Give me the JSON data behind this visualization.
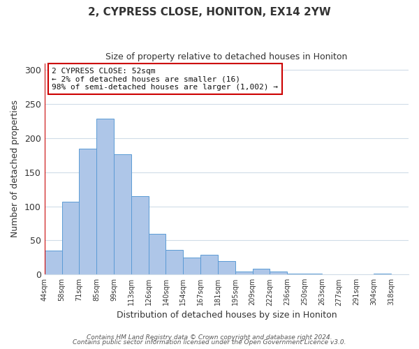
{
  "title": "2, CYPRESS CLOSE, HONITON, EX14 2YW",
  "subtitle": "Size of property relative to detached houses in Honiton",
  "xlabel": "Distribution of detached houses by size in Honiton",
  "ylabel": "Number of detached properties",
  "bar_labels": [
    "44sqm",
    "58sqm",
    "71sqm",
    "85sqm",
    "99sqm",
    "113sqm",
    "126sqm",
    "140sqm",
    "154sqm",
    "167sqm",
    "181sqm",
    "195sqm",
    "209sqm",
    "222sqm",
    "236sqm",
    "250sqm",
    "263sqm",
    "277sqm",
    "291sqm",
    "304sqm",
    "318sqm"
  ],
  "bar_heights": [
    35,
    107,
    185,
    229,
    176,
    115,
    60,
    36,
    25,
    29,
    20,
    4,
    8,
    4,
    1,
    1,
    0,
    0,
    0,
    1,
    0
  ],
  "bar_color": "#aec6e8",
  "bar_edge_color": "#5b9bd5",
  "annotation_box_text": "2 CYPRESS CLOSE: 52sqm\n← 2% of detached houses are smaller (16)\n98% of semi-detached houses are larger (1,002) →",
  "annotation_box_color": "#ffffff",
  "annotation_box_edge_color": "#cc0000",
  "ylim": [
    0,
    310
  ],
  "grid_color": "#d0dce8",
  "background_color": "#ffffff",
  "footer_line1": "Contains HM Land Registry data © Crown copyright and database right 2024.",
  "footer_line2": "Contains public sector information licensed under the Open Government Licence v3.0."
}
